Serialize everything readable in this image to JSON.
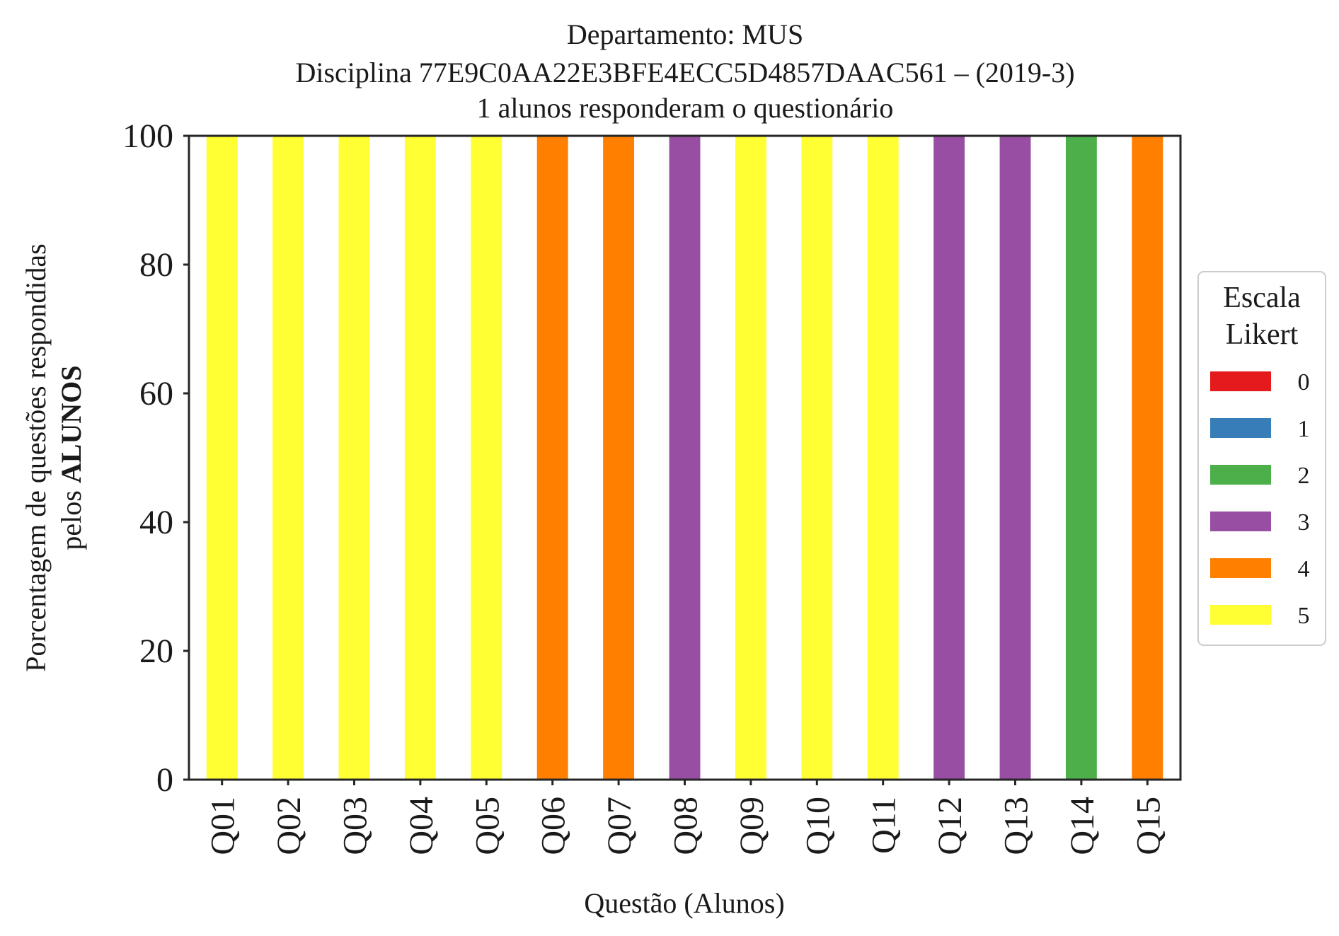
{
  "chart_data": {
    "type": "bar",
    "stacked": true,
    "title_lines": [
      "Departamento: MUS",
      "Disciplina 77E9C0AA22E3BFE4ECC5D4857DAAC561 – (2019-3)",
      "1 alunos responderam o questionário"
    ],
    "xlabel": "Questão (Alunos)",
    "ylabel_line1": "Porcentagem de questões respondidas",
    "ylabel_line2_prefix": "pelos ",
    "ylabel_line2_bold": "ALUNOS",
    "ylim": [
      0,
      100
    ],
    "yticks": [
      0,
      20,
      40,
      60,
      80,
      100
    ],
    "grid": false,
    "categories": [
      "Q01",
      "Q02",
      "Q03",
      "Q04",
      "Q05",
      "Q06",
      "Q07",
      "Q08",
      "Q09",
      "Q10",
      "Q11",
      "Q12",
      "Q13",
      "Q14",
      "Q15"
    ],
    "legend": {
      "title_lines": [
        "Escala",
        "Likert"
      ],
      "placement": "right",
      "entries": [
        {
          "label": "0",
          "color": "#e41a1c"
        },
        {
          "label": "1",
          "color": "#377eb8"
        },
        {
          "label": "2",
          "color": "#4daf4a"
        },
        {
          "label": "3",
          "color": "#984ea3"
        },
        {
          "label": "4",
          "color": "#ff7f00"
        },
        {
          "label": "5",
          "color": "#ffff33"
        }
      ]
    },
    "series": [
      {
        "name": "0",
        "color": "#e41a1c",
        "values": [
          0,
          0,
          0,
          0,
          0,
          0,
          0,
          0,
          0,
          0,
          0,
          0,
          0,
          0,
          0
        ]
      },
      {
        "name": "1",
        "color": "#377eb8",
        "values": [
          0,
          0,
          0,
          0,
          0,
          0,
          0,
          0,
          0,
          0,
          0,
          0,
          0,
          0,
          0
        ]
      },
      {
        "name": "2",
        "color": "#4daf4a",
        "values": [
          0,
          0,
          0,
          0,
          0,
          0,
          0,
          0,
          0,
          0,
          0,
          0,
          0,
          100,
          0
        ]
      },
      {
        "name": "3",
        "color": "#984ea3",
        "values": [
          0,
          0,
          0,
          0,
          0,
          0,
          0,
          100,
          0,
          0,
          0,
          100,
          100,
          0,
          0
        ]
      },
      {
        "name": "4",
        "color": "#ff7f00",
        "values": [
          0,
          0,
          0,
          0,
          0,
          100,
          100,
          0,
          0,
          0,
          0,
          0,
          0,
          0,
          100
        ]
      },
      {
        "name": "5",
        "color": "#ffff33",
        "values": [
          100,
          100,
          100,
          100,
          100,
          0,
          0,
          0,
          100,
          100,
          100,
          0,
          0,
          0,
          0
        ]
      }
    ]
  }
}
